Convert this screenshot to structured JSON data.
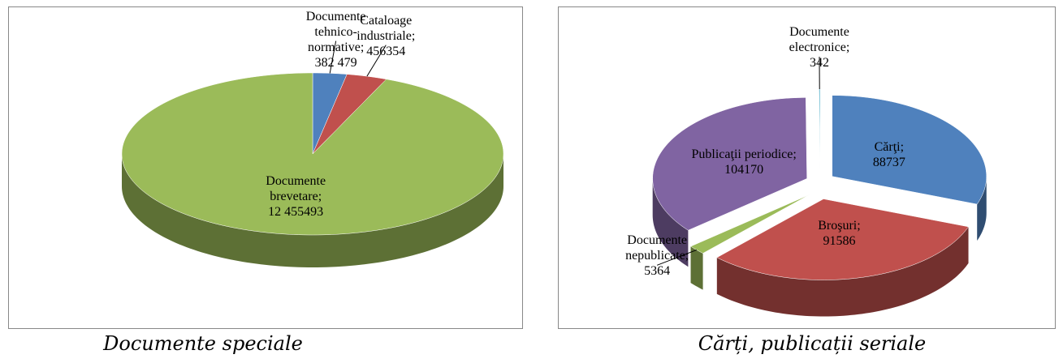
{
  "chart_data": [
    {
      "type": "pie3d",
      "caption": "Documente speciale",
      "categories": [
        "Documente tehnico-normative;",
        "Cataloage industriale;",
        "Documente brevetare;"
      ],
      "values": [
        382479,
        456354,
        12455493
      ],
      "value_labels": [
        "382 479",
        "456354",
        "12 455493"
      ],
      "colors": [
        "#4f81bd",
        "#c0504d",
        "#9bbb59"
      ]
    },
    {
      "type": "pie3d",
      "caption": "Cărți, publicații seriale",
      "categories": [
        "Cărţi;",
        "Broşuri;",
        "Documente nepublicate;",
        "Publicaţii periodice;",
        "Documente electronice;"
      ],
      "values": [
        88737,
        91586,
        5364,
        104170,
        342
      ],
      "colors": [
        "#4f81bd",
        "#c0504d",
        "#9bbb59",
        "#8064a2",
        "#4bacc6"
      ],
      "exploded": true
    }
  ]
}
